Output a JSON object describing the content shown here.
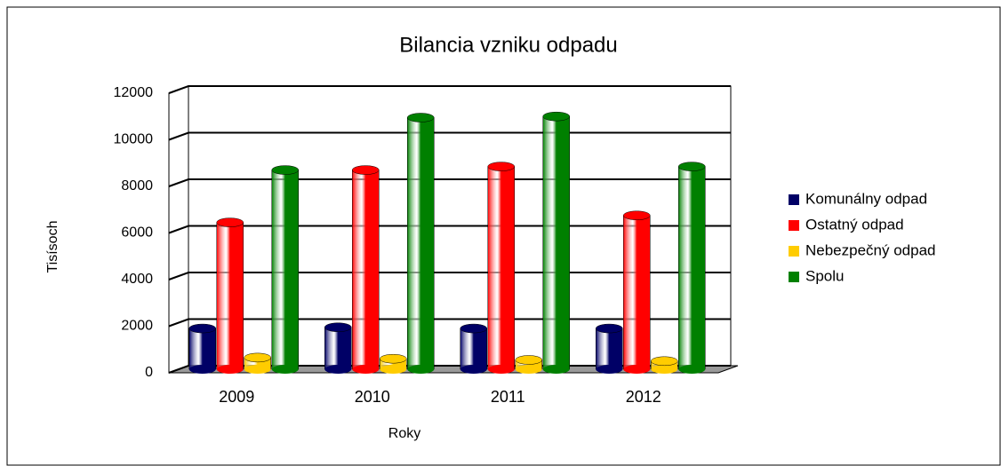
{
  "chart_data": {
    "type": "bar",
    "title": "Bilancia vzniku odpadu",
    "x_label": "Roky",
    "y_label": "Tisísoch",
    "categories": [
      "2009",
      "2010",
      "2011",
      "2012"
    ],
    "series": [
      {
        "name": "Komunálny odpad",
        "color": "#000066",
        "values": [
          1750,
          1800,
          1750,
          1750
        ]
      },
      {
        "name": "Ostatný odpad",
        "color": "#ff0000",
        "values": [
          6300,
          8550,
          8700,
          6600
        ]
      },
      {
        "name": "Nebezpečný odpad",
        "color": "#ffcc00",
        "values": [
          500,
          450,
          400,
          350
        ]
      },
      {
        "name": "Spolu",
        "color": "#008000",
        "values": [
          8550,
          10800,
          10850,
          8700
        ]
      }
    ],
    "ylim": [
      0,
      12000
    ],
    "yticks": [
      0,
      2000,
      4000,
      6000,
      8000,
      10000,
      12000
    ],
    "grid": true,
    "legend": "right"
  }
}
